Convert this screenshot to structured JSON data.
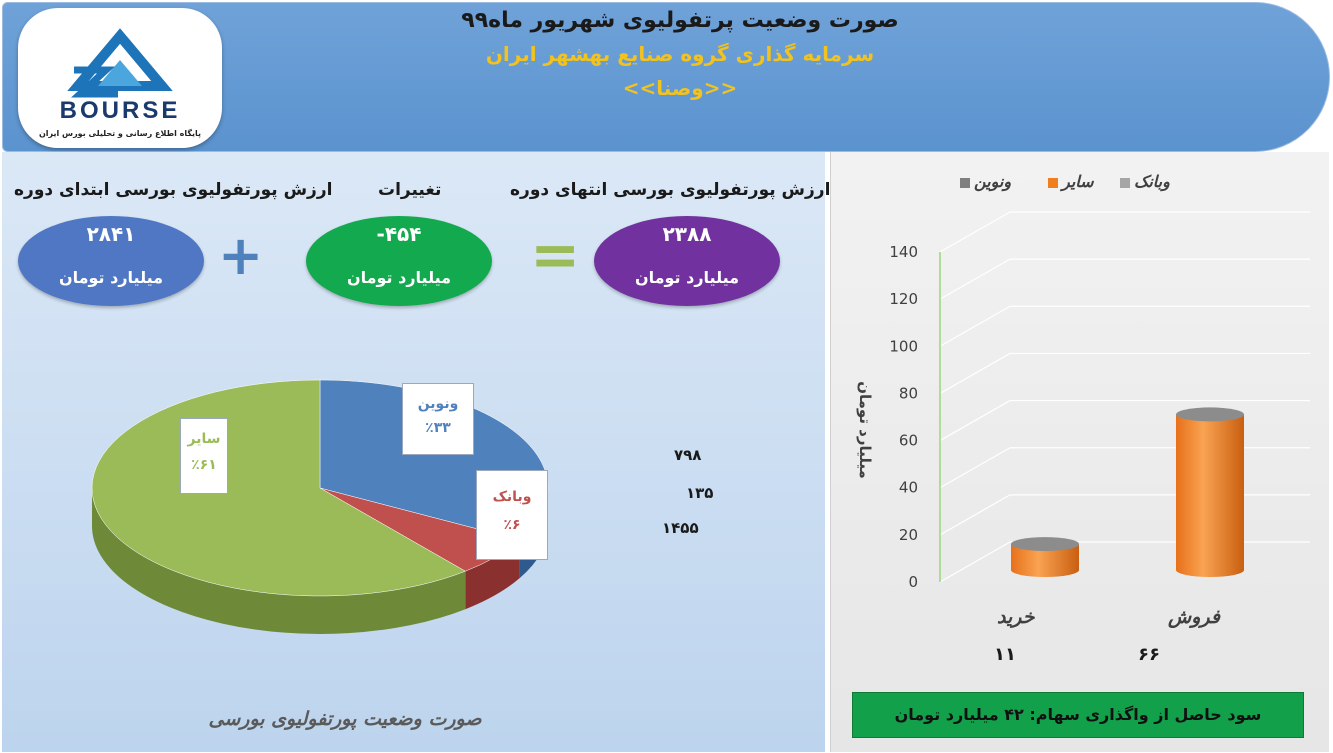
{
  "header": {
    "title": "صورت وضعیت پرتفولیوی شهریور ماه۹۹",
    "subtitle": "سرمایه گذاری گروه صنایع بهشهر ایران",
    "symbol": "<<وصنا>>",
    "logo_text": "BOURSE",
    "logo_tagline": "پایگاه اطلاع رسانی و تحلیلی بورس ایران"
  },
  "summary": {
    "start_label": "ارزش پورتفولیوی بورسی ابتدای دوره",
    "start_value": "۲۸۴۱",
    "change_label": "تغییرات",
    "change_value": "-۴۵۴",
    "end_label": "ارزش پورتفولیوی بورسی انتهای دوره",
    "end_value": "۲۳۸۸",
    "unit": "میلیارد تومان",
    "plus_symbol": "+",
    "equals_symbol": "="
  },
  "pie": {
    "caption": "صورت وضعیت پورتفولیوی بورسی",
    "values_list": [
      "۷۹۸",
      "۱۳۵",
      "۱۴۵۵"
    ]
  },
  "profit_box": "سود حاصل از واگذاری سهام: ۴۲ میلیارد تومان",
  "colors": {
    "header_bg": "#5b93cf",
    "header_sub": "#f2c21e",
    "ellipse_start": "#4f77c4",
    "ellipse_change": "#13a94e",
    "ellipse_end": "#7132a0",
    "pie_saayer": "#9bbb59",
    "pie_vonovin": "#4f81bd",
    "pie_vabank": "#c0504d",
    "bar_orange": "#f07d1e",
    "profit_bg": "#12a04a"
  },
  "chart_data": [
    {
      "type": "pie",
      "slices": [
        {
          "name": "ونوین",
          "percent_label": "٪۳۳",
          "value": 33
        },
        {
          "name": "وبانک",
          "percent_label": "٪۶",
          "value": 6
        },
        {
          "name": "سایر",
          "percent_label": "٪۶۱",
          "value": 61
        }
      ]
    },
    {
      "type": "bar",
      "legend": [
        "ونوین",
        "سایر",
        "وبانک"
      ],
      "legend_colors": [
        "#7f7f7f",
        "#f07d1e",
        "#a5a5a5"
      ],
      "ylabel": "میلیارد تومان",
      "ylim": [
        0,
        140
      ],
      "yticks": [
        0,
        20,
        40,
        60,
        80,
        100,
        120,
        140
      ],
      "categories": [
        "خرید",
        "فروش"
      ],
      "category_values": [
        "۱۱",
        "۶۶"
      ],
      "series": [
        {
          "name": "سایر",
          "values": [
            11,
            66
          ]
        }
      ]
    }
  ]
}
